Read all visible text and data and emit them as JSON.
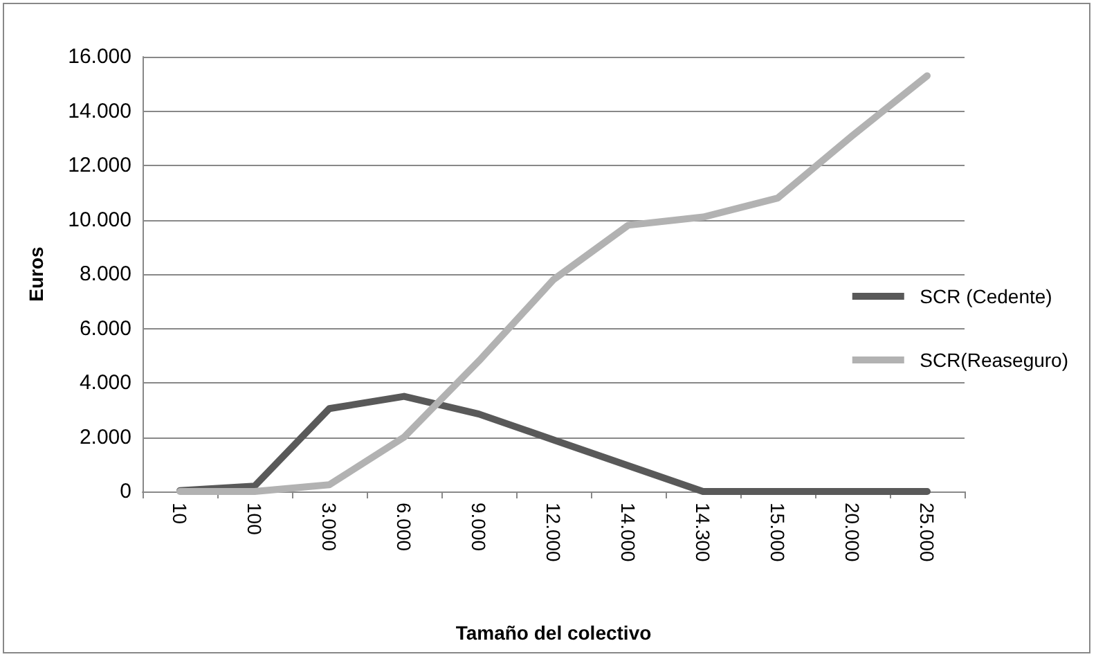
{
  "chart_data": {
    "type": "line",
    "xlabel": "Tamaño del colectivo",
    "ylabel": "Euros",
    "categories": [
      "10",
      "100",
      "3.000",
      "6.000",
      "9.000",
      "12.000",
      "14.000",
      "14.300",
      "15.000",
      "20.000",
      "25.000"
    ],
    "series": [
      {
        "name": "SCR (Cedente)",
        "color": "#595959",
        "values": [
          30,
          200,
          3050,
          3500,
          2850,
          1900,
          950,
          0,
          0,
          0,
          0
        ]
      },
      {
        "name": "SCR(Reaseguro)",
        "color": "#b2b2b2",
        "values": [
          0,
          0,
          250,
          2000,
          4800,
          7800,
          9800,
          10100,
          10800,
          13100,
          15300
        ]
      }
    ],
    "ylim": [
      0,
      16000
    ],
    "yticks": [
      {
        "value": 0,
        "label": "0"
      },
      {
        "value": 2000,
        "label": "2.000"
      },
      {
        "value": 4000,
        "label": "4.000"
      },
      {
        "value": 6000,
        "label": "6.000"
      },
      {
        "value": 8000,
        "label": "8.000"
      },
      {
        "value": 10000,
        "label": "10.000"
      },
      {
        "value": 12000,
        "label": "12.000"
      },
      {
        "value": 14000,
        "label": "14.000"
      },
      {
        "value": 16000,
        "label": "16.000"
      }
    ],
    "grid": "y",
    "legend": "right",
    "marker": "none",
    "line_style": "solid"
  }
}
